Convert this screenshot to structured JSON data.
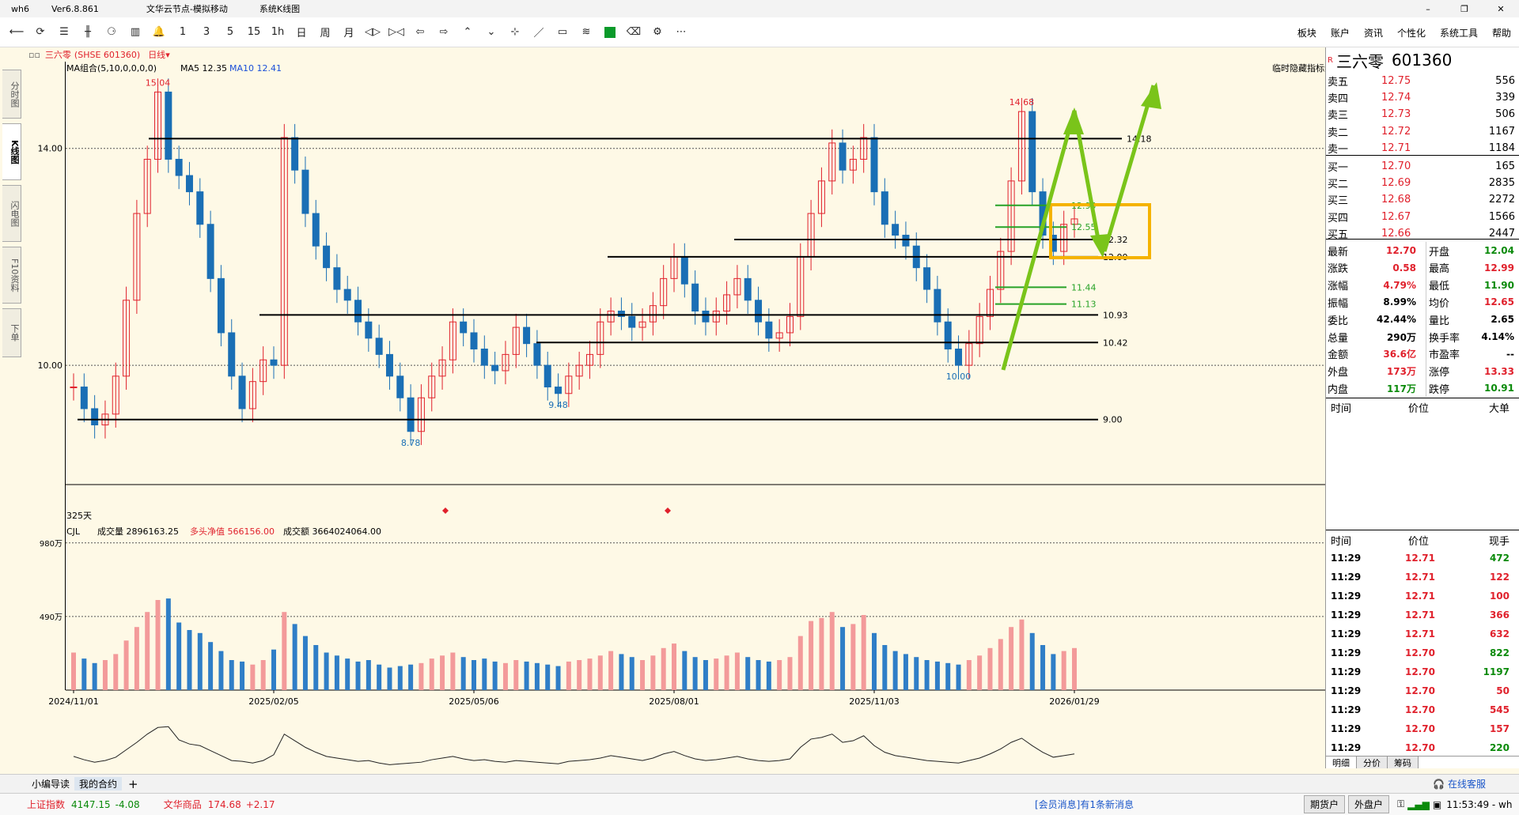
{
  "app": {
    "name": "wh6",
    "version": "Ver6.8.861",
    "server": "文华云节点-模拟移动",
    "view": "系统K线图"
  },
  "toolbar": {
    "icons": [
      "back-icon",
      "refresh-icon",
      "list-icon",
      "candle-icon",
      "share-icon",
      "bar-icon",
      "bell-icon"
    ],
    "periods": [
      "1",
      "3",
      "5",
      "15",
      "1h",
      "日",
      "周",
      "月"
    ],
    "right_menu": [
      "板块",
      "账户",
      "资讯",
      "个性化",
      "系统工具",
      "帮助"
    ]
  },
  "sidebar": {
    "tabs": [
      "分时图",
      "K线图",
      "闪电图",
      "F10资料",
      "下单"
    ]
  },
  "header": {
    "symbol_label": "三六零",
    "exchange_code": "(SHSE 601360)",
    "period": "日线",
    "ma_label": "MA组合(5,10,0,0,0,0)",
    "ma5": "MA5 12.35",
    "ma10": "MA10 12.41",
    "hide_indicator": "临时隐藏指标线",
    "days_label": "325天"
  },
  "chart_data": {
    "type": "candlestick",
    "y_ticks": [
      "14.00",
      "10.00"
    ],
    "y_range": [
      7.8,
      15.6
    ],
    "x_labels": [
      "2024/11/01",
      "2025/02/05",
      "2025/05/06",
      "2025/08/01",
      "2025/11/03",
      "2026/01/29"
    ],
    "annotations": [
      {
        "label": "15.04",
        "value": 15.04,
        "color": "#e0212c"
      },
      {
        "label": "8.78",
        "value": 8.78,
        "color": "#1a6fb5"
      },
      {
        "label": "9.48",
        "value": 9.48,
        "color": "#1a6fb5"
      },
      {
        "label": "10.00",
        "value": 10.0,
        "color": "#1a6fb5"
      },
      {
        "label": "14.68",
        "value": 14.68,
        "color": "#e0212c"
      }
    ],
    "hlines": [
      {
        "label": "14.18",
        "value": 14.18,
        "color": "#000"
      },
      {
        "label": "12.32",
        "value": 12.32,
        "color": "#000"
      },
      {
        "label": "12.00",
        "value": 12.0,
        "color": "#000"
      },
      {
        "label": "10.93",
        "value": 10.93,
        "color": "#000"
      },
      {
        "label": "10.42",
        "value": 10.42,
        "color": "#000"
      },
      {
        "label": "9.00",
        "value": 9.0,
        "color": "#000"
      },
      {
        "label": "11.44",
        "value": 11.44,
        "color": "#27a227"
      },
      {
        "label": "11.13",
        "value": 11.13,
        "color": "#27a227"
      },
      {
        "label": "12.55",
        "value": 12.55,
        "color": "#27a227"
      },
      {
        "label": "12.95",
        "value": 12.95,
        "color": "#27a227"
      }
    ],
    "price_series": [
      9.6,
      9.2,
      8.9,
      9.1,
      9.8,
      11.2,
      12.8,
      13.8,
      15.04,
      13.8,
      13.5,
      13.2,
      12.6,
      11.6,
      10.6,
      9.8,
      9.2,
      9.7,
      10.1,
      10.0,
      14.2,
      13.6,
      12.8,
      12.2,
      11.8,
      11.4,
      11.2,
      10.8,
      10.5,
      10.2,
      9.8,
      9.4,
      8.78,
      9.4,
      9.8,
      10.1,
      10.8,
      10.6,
      10.3,
      10.0,
      9.9,
      10.2,
      10.7,
      10.4,
      10.0,
      9.6,
      9.48,
      9.8,
      10.0,
      10.2,
      10.8,
      11.0,
      10.9,
      10.7,
      10.8,
      11.1,
      11.6,
      12.0,
      11.5,
      11.0,
      10.8,
      11.0,
      11.3,
      11.6,
      11.2,
      10.8,
      10.5,
      10.6,
      10.9,
      12.0,
      12.8,
      13.4,
      14.1,
      13.6,
      13.8,
      14.2,
      13.2,
      12.6,
      12.4,
      12.2,
      11.8,
      11.4,
      10.8,
      10.3,
      10.0,
      10.4,
      10.9,
      11.4,
      12.1,
      13.4,
      14.68,
      13.2,
      12.4,
      12.1,
      12.6,
      12.7
    ],
    "volume_ticks": [
      "980万",
      "490万"
    ],
    "volume_range": [
      0,
      1000
    ],
    "volume_series": [
      250,
      210,
      180,
      200,
      240,
      330,
      420,
      520,
      600,
      610,
      450,
      400,
      380,
      320,
      260,
      200,
      190,
      170,
      200,
      270,
      520,
      440,
      360,
      300,
      250,
      230,
      210,
      190,
      200,
      170,
      150,
      160,
      170,
      180,
      210,
      230,
      250,
      220,
      200,
      210,
      190,
      180,
      200,
      190,
      180,
      170,
      160,
      190,
      200,
      210,
      230,
      260,
      240,
      220,
      200,
      230,
      280,
      310,
      260,
      220,
      200,
      210,
      230,
      250,
      220,
      200,
      190,
      200,
      220,
      360,
      460,
      480,
      520,
      420,
      440,
      500,
      380,
      300,
      260,
      240,
      220,
      200,
      190,
      180,
      170,
      200,
      230,
      280,
      340,
      420,
      470,
      380,
      300,
      240,
      260,
      280
    ]
  },
  "volume_header": {
    "cjl": "CJL",
    "vol_label": "成交量 2896163.25",
    "net_label": "多头净值 566156.00",
    "amount_label": "成交额 3664024064.00"
  },
  "quote": {
    "flag": "R",
    "name": "三六零",
    "code": "601360",
    "asks": [
      {
        "l": "卖五",
        "p": "12.75",
        "v": "556"
      },
      {
        "l": "卖四",
        "p": "12.74",
        "v": "339"
      },
      {
        "l": "卖三",
        "p": "12.73",
        "v": "506"
      },
      {
        "l": "卖二",
        "p": "12.72",
        "v": "1167"
      },
      {
        "l": "卖一",
        "p": "12.71",
        "v": "1184"
      }
    ],
    "bids": [
      {
        "l": "买一",
        "p": "12.70",
        "v": "165"
      },
      {
        "l": "买二",
        "p": "12.69",
        "v": "2835"
      },
      {
        "l": "买三",
        "p": "12.68",
        "v": "2272"
      },
      {
        "l": "买四",
        "p": "12.67",
        "v": "1566"
      },
      {
        "l": "买五",
        "p": "12.66",
        "v": "2447"
      }
    ],
    "stats": [
      {
        "l1": "最新",
        "v1": "12.70",
        "c1": "red",
        "l2": "开盘",
        "v2": "12.04",
        "c2": "green"
      },
      {
        "l1": "涨跌",
        "v1": "0.58",
        "c1": "red",
        "l2": "最高",
        "v2": "12.99",
        "c2": "red"
      },
      {
        "l1": "涨幅",
        "v1": "4.79%",
        "c1": "red",
        "l2": "最低",
        "v2": "11.90",
        "c2": "green"
      },
      {
        "l1": "振幅",
        "v1": "8.99%",
        "c1": "black",
        "l2": "均价",
        "v2": "12.65",
        "c2": "red"
      },
      {
        "l1": "委比",
        "v1": "42.44%",
        "c1": "black",
        "l2": "量比",
        "v2": "2.65",
        "c2": "black"
      },
      {
        "l1": "总量",
        "v1": "290万",
        "c1": "black",
        "l2": "换手率",
        "v2": "4.14%",
        "c2": "black"
      },
      {
        "l1": "金额",
        "v1": "36.6亿",
        "c1": "red",
        "l2": "市盈率",
        "v2": "--",
        "c2": "black"
      },
      {
        "l1": "外盘",
        "v1": "173万",
        "c1": "red",
        "l2": "涨停",
        "v2": "13.33",
        "c2": "red"
      },
      {
        "l1": "内盘",
        "v1": "117万",
        "c1": "green",
        "l2": "跌停",
        "v2": "10.91",
        "c2": "green"
      }
    ],
    "big_header": {
      "time": "时间",
      "price": "价位",
      "big": "大单"
    },
    "ticks_header": {
      "time": "时间",
      "price": "价位",
      "vol": "现手"
    },
    "ticks": [
      {
        "t": "11:29",
        "p": "12.71",
        "v": "472",
        "c": "green"
      },
      {
        "t": "11:29",
        "p": "12.71",
        "v": "122",
        "c": "red"
      },
      {
        "t": "11:29",
        "p": "12.71",
        "v": "100",
        "c": "red"
      },
      {
        "t": "11:29",
        "p": "12.71",
        "v": "366",
        "c": "red"
      },
      {
        "t": "11:29",
        "p": "12.71",
        "v": "632",
        "c": "red"
      },
      {
        "t": "11:29",
        "p": "12.70",
        "v": "822",
        "c": "green"
      },
      {
        "t": "11:29",
        "p": "12.70",
        "v": "1197",
        "c": "green"
      },
      {
        "t": "11:29",
        "p": "12.70",
        "v": "50",
        "c": "red"
      },
      {
        "t": "11:29",
        "p": "12.70",
        "v": "545",
        "c": "red"
      },
      {
        "t": "11:29",
        "p": "12.70",
        "v": "157",
        "c": "red"
      },
      {
        "t": "11:29",
        "p": "12.70",
        "v": "220",
        "c": "green"
      }
    ],
    "bottom_tabs": [
      "明细",
      "分价",
      "筹码"
    ]
  },
  "bottom": {
    "tab1": "小编导读",
    "tab2": "我的合约",
    "add": "+",
    "service": "在线客服"
  },
  "status": {
    "idx1_name": "上证指数",
    "idx1_val": "4147.15",
    "idx1_chg": "-4.08",
    "idx2_name": "文华商品",
    "idx2_val": "174.68",
    "idx2_chg": "+2.17",
    "msg": "[会员消息]有1条新消息",
    "btn1": "期货户",
    "btn2": "外盘户",
    "time": "11:53:49 - wh"
  },
  "colors": {
    "up": "#e0212c",
    "down": "#1a6fb5",
    "bg": "#fef9e6"
  }
}
